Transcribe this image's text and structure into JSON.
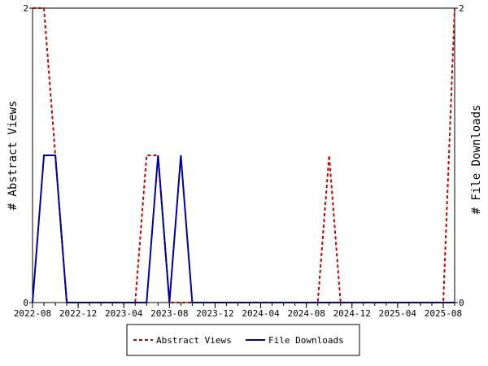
{
  "chart_data": {
    "type": "line",
    "ylabel_left": "# Abstract Views",
    "ylabel_right": "# File Downloads",
    "x_start": "2022-08",
    "x_end": "2025-09",
    "x_ticks": [
      "2022-08",
      "2022-12",
      "2023-04",
      "2023-08",
      "2023-12",
      "2024-04",
      "2024-08",
      "2024-12",
      "2025-04",
      "2025-08"
    ],
    "ylim_left": [
      0,
      2
    ],
    "ylim_right": [
      0,
      2
    ],
    "y_ticks_left": [
      "0",
      "2"
    ],
    "y_ticks_right": [
      "0",
      "2"
    ],
    "legend_position": "bottom",
    "series": [
      {
        "name": "Abstract Views",
        "color": "#cc0000",
        "dash": "dashed",
        "axis": "left",
        "x": [
          "2022-08",
          "2022-09",
          "2022-10",
          "2022-11",
          "2022-12",
          "2023-01",
          "2023-02",
          "2023-03",
          "2023-04",
          "2023-05",
          "2023-06",
          "2023-07",
          "2023-08",
          "2023-09",
          "2023-10",
          "2023-11",
          "2023-12",
          "2024-01",
          "2024-02",
          "2024-03",
          "2024-04",
          "2024-05",
          "2024-06",
          "2024-07",
          "2024-08",
          "2024-09",
          "2024-10",
          "2024-11",
          "2024-12",
          "2025-01",
          "2025-02",
          "2025-03",
          "2025-04",
          "2025-05",
          "2025-06",
          "2025-07",
          "2025-08",
          "2025-09"
        ],
        "values": [
          2,
          2,
          1,
          0,
          0,
          0,
          0,
          0,
          0,
          0,
          1,
          1,
          0,
          0,
          0,
          0,
          0,
          0,
          0,
          0,
          0,
          0,
          0,
          0,
          0,
          0,
          1,
          0,
          0,
          0,
          0,
          0,
          0,
          0,
          0,
          0,
          0,
          2
        ]
      },
      {
        "name": "File Downloads",
        "color": "#0000aa",
        "dash": "solid",
        "axis": "right",
        "x": [
          "2022-08",
          "2022-09",
          "2022-10",
          "2022-11",
          "2022-12",
          "2023-01",
          "2023-02",
          "2023-03",
          "2023-04",
          "2023-05",
          "2023-06",
          "2023-07",
          "2023-08",
          "2023-09",
          "2023-10",
          "2023-11",
          "2023-12",
          "2024-01",
          "2024-02",
          "2024-03",
          "2024-04",
          "2024-05",
          "2024-06",
          "2024-07",
          "2024-08",
          "2024-09",
          "2024-10",
          "2024-11",
          "2024-12",
          "2025-01",
          "2025-02",
          "2025-03",
          "2025-04",
          "2025-05",
          "2025-06",
          "2025-07",
          "2025-08",
          "2025-09"
        ],
        "values": [
          0,
          1,
          1,
          0,
          0,
          0,
          0,
          0,
          0,
          0,
          0,
          1,
          0,
          1,
          0,
          0,
          0,
          0,
          0,
          0,
          0,
          0,
          0,
          0,
          0,
          0,
          0,
          0,
          0,
          0,
          0,
          0,
          0,
          0,
          0,
          0,
          0,
          0
        ]
      }
    ]
  }
}
